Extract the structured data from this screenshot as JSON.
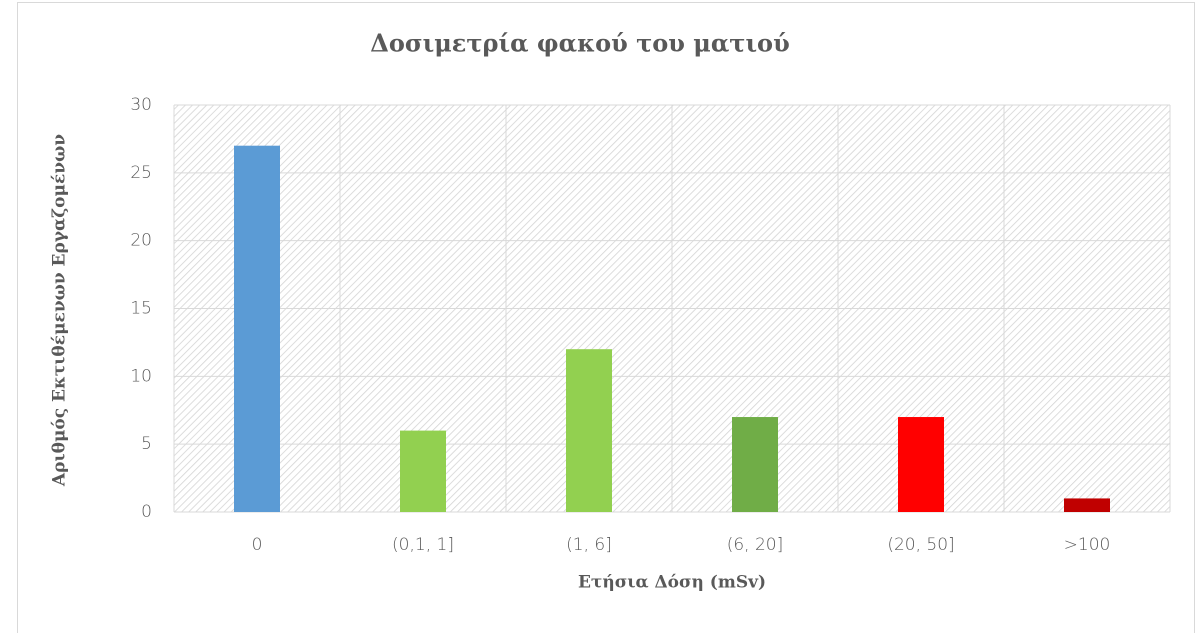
{
  "chart_data": {
    "type": "bar",
    "title": "Δοσιμετρία φακού του ματιού",
    "x_label": "Ετήσια Δόση (mSv)",
    "y_label": "Αριθμός Εκτιθέμενων Εργαζομένων",
    "categories": [
      "0",
      "(0,1, 1]",
      "(1, 6]",
      "(6, 20]",
      "(20, 50]",
      ">100"
    ],
    "values": [
      27,
      6,
      12,
      7,
      7,
      1
    ],
    "colors": [
      "#5b9bd5",
      "#92d050",
      "#92d050",
      "#70ad47",
      "#ff0000",
      "#c00000"
    ],
    "ylim": [
      0,
      30
    ],
    "yticks": [
      0,
      5,
      10,
      15,
      20,
      25,
      30
    ],
    "grid": true
  }
}
